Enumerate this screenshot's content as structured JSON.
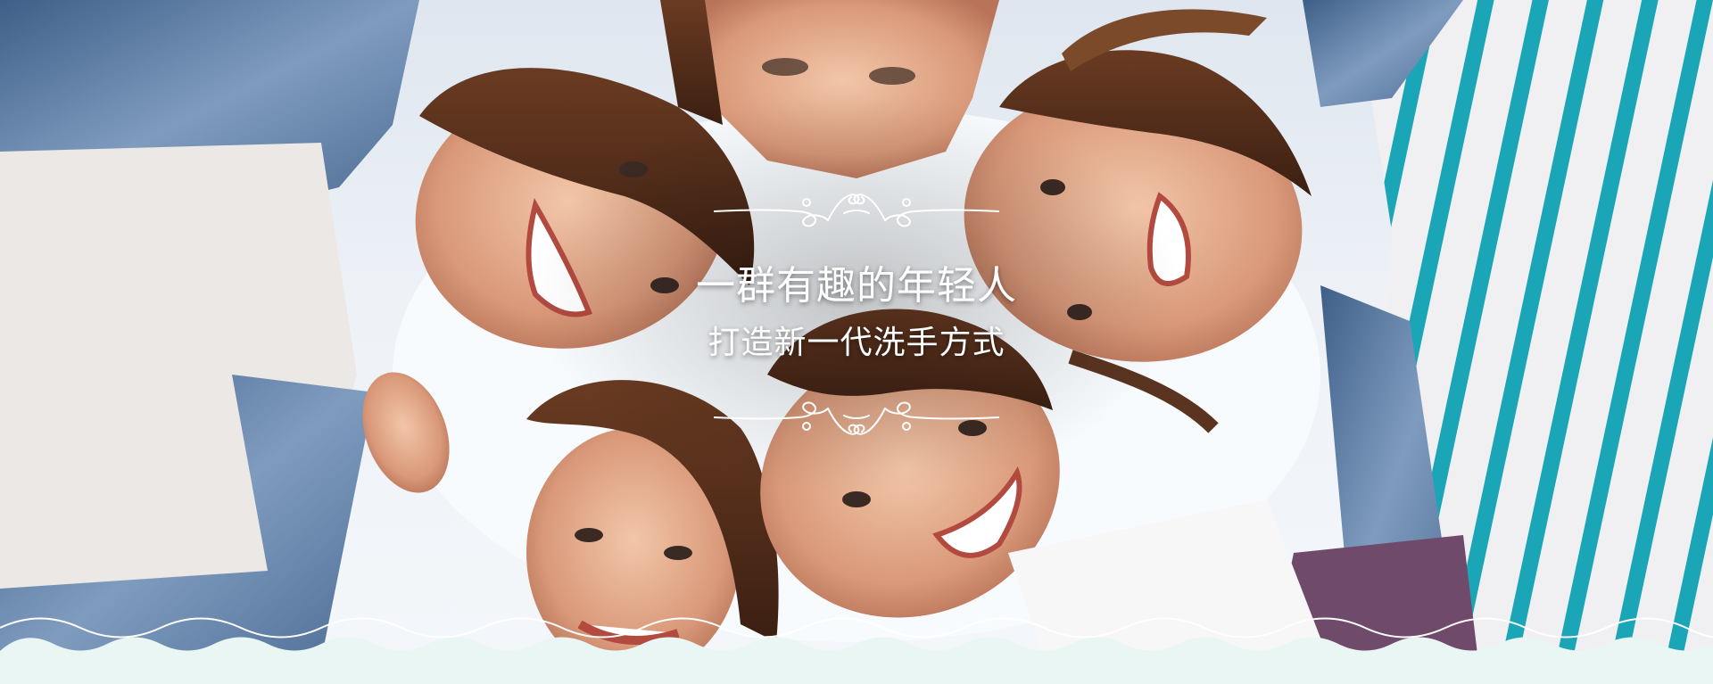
{
  "hero": {
    "headline": "一群有趣的年轻人",
    "subline": "打造新一代洗手方式"
  },
  "colors": {
    "wave_fill": "#eaf6f3",
    "wave_line": "#ffffff",
    "text": "#ffffff",
    "stripe_accent": "#1aa6b7"
  },
  "icons": {
    "ornament_top": "flourish-divider",
    "ornament_bottom": "flourish-divider"
  }
}
